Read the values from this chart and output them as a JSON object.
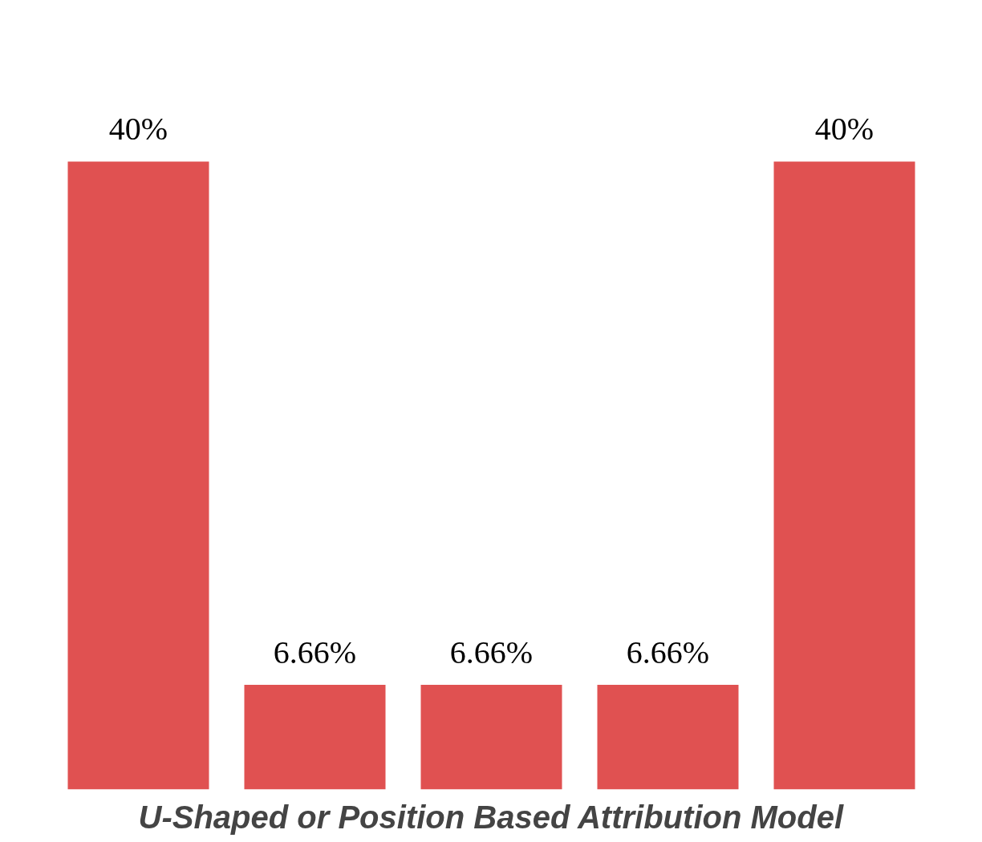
{
  "chart_data": {
    "type": "bar",
    "title": "U-Shaped or Position Based Attribution Model",
    "categories": [
      null,
      null,
      null,
      null,
      null
    ],
    "values": [
      40,
      6.66,
      6.66,
      6.66,
      40
    ],
    "color": "#e05151",
    "value_labels": [
      "40%",
      "6.66%",
      "6.66%",
      "6.66%",
      "40%"
    ]
  }
}
